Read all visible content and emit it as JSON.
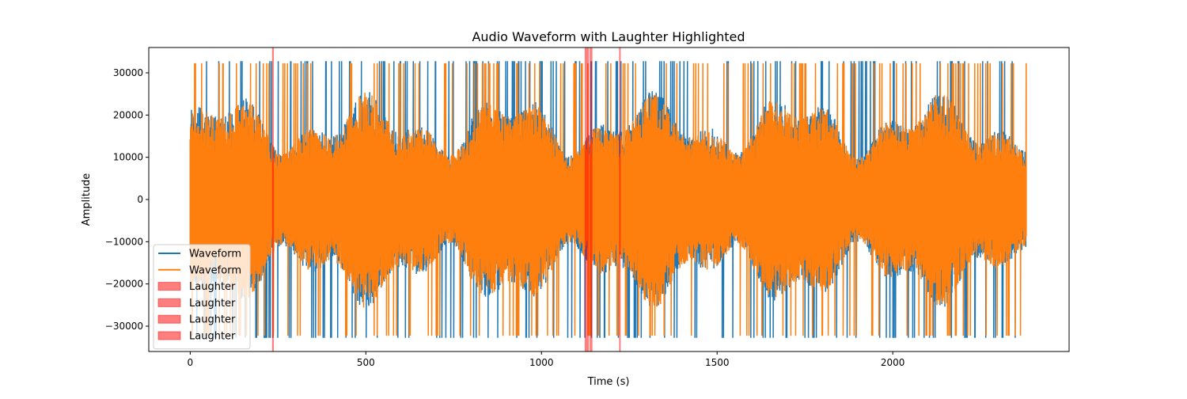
{
  "chart_data": {
    "type": "line",
    "title": "Audio Waveform with Laughter Highlighted",
    "xlabel": "Time (s)",
    "ylabel": "Amplitude",
    "xlim": [
      -118,
      2502
    ],
    "ylim": [
      -36000,
      36000
    ],
    "x_ticks": [
      0,
      500,
      1000,
      1500,
      2000
    ],
    "x_tick_labels": [
      "0",
      "500",
      "1000",
      "1500",
      "2000"
    ],
    "y_ticks": [
      -30000,
      -20000,
      -10000,
      0,
      10000,
      20000,
      30000
    ],
    "y_tick_labels": [
      "−30000",
      "−20000",
      "−10000",
      "0",
      "10000",
      "20000",
      "30000"
    ],
    "duration": 2380,
    "amplitude_max": 32767,
    "series": [
      {
        "name": "Waveform",
        "color": "#1f77b4"
      },
      {
        "name": "Waveform",
        "color": "#ff7f0e"
      }
    ],
    "highlights": [
      {
        "name": "Laughter",
        "start": 233,
        "end": 238,
        "color": "#ff0000",
        "alpha": 0.5
      },
      {
        "name": "Laughter",
        "start": 1123,
        "end": 1135,
        "color": "#ff0000",
        "alpha": 0.5
      },
      {
        "name": "Laughter",
        "start": 1137,
        "end": 1145,
        "color": "#ff0000",
        "alpha": 0.5
      },
      {
        "name": "Laughter",
        "start": 1221,
        "end": 1225,
        "color": "#ff0000",
        "alpha": 0.5
      }
    ],
    "legend": {
      "placement": "lower-left",
      "entries": [
        {
          "label": "Waveform",
          "kind": "line",
          "color": "#1f77b4"
        },
        {
          "label": "Waveform",
          "kind": "line",
          "color": "#ff7f0e"
        },
        {
          "label": "Laughter",
          "kind": "patch",
          "color": "#ff0000"
        },
        {
          "label": "Laughter",
          "kind": "patch",
          "color": "#ff0000"
        },
        {
          "label": "Laughter",
          "kind": "patch",
          "color": "#ff0000"
        },
        {
          "label": "Laughter",
          "kind": "patch",
          "color": "#ff0000"
        }
      ]
    },
    "grid": false
  }
}
